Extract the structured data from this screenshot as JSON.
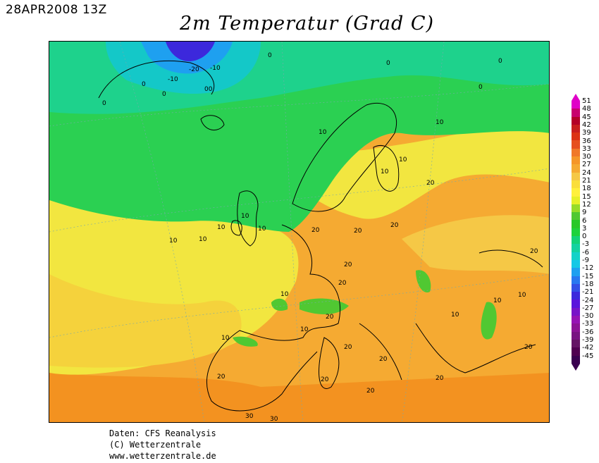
{
  "header": {
    "datestamp": "28APR2008 13Z",
    "title": "2m Temperatur (Grad C)"
  },
  "map": {
    "contour_labels": [
      "-20",
      "-10",
      "-10",
      "0",
      "0",
      "0",
      "0",
      "0",
      "0",
      "0",
      "00",
      "10",
      "10",
      "10",
      "10",
      "10",
      "10",
      "10",
      "10",
      "10",
      "10",
      "10",
      "10",
      "10",
      "10",
      "10",
      "20",
      "20",
      "20",
      "20",
      "20",
      "20",
      "20",
      "20",
      "20",
      "20",
      "20",
      "20",
      "20",
      "20",
      "20",
      "30",
      "30"
    ]
  },
  "legend": {
    "labels": [
      "51",
      "48",
      "45",
      "42",
      "39",
      "36",
      "33",
      "30",
      "27",
      "24",
      "21",
      "18",
      "15",
      "12",
      "9",
      "6",
      "3",
      "0",
      "-3",
      "-6",
      "-9",
      "-12",
      "-15",
      "-18",
      "-21",
      "-24",
      "-27",
      "-30",
      "-33",
      "-36",
      "-39",
      "-42",
      "-45"
    ],
    "colors": [
      "#e000c8",
      "#c8006e",
      "#b40028",
      "#c81e1e",
      "#dc3214",
      "#e6501e",
      "#f07828",
      "#f59628",
      "#f5aa32",
      "#f5c846",
      "#fade3c",
      "#fff03c",
      "#e6f028",
      "#96dc28",
      "#50c832",
      "#28c828",
      "#1ed23c",
      "#14d278",
      "#14d2a0",
      "#14d2c8",
      "#14c8e6",
      "#1ea0f0",
      "#2878f0",
      "#3250e6",
      "#3c28dc",
      "#5a14dc",
      "#7814c8",
      "#9614b4",
      "#8c1496",
      "#781482",
      "#641464",
      "#500050",
      "#3a0050"
    ]
  },
  "credits": {
    "line1": "Daten: CFS Reanalysis",
    "line2": "(C) Wetterzentrale",
    "line3": "www.wetterzentrale.de"
  }
}
